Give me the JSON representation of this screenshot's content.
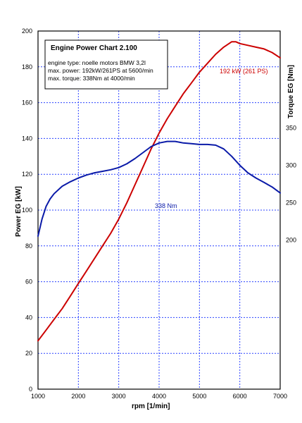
{
  "chart_data": {
    "type": "line",
    "info_box": {
      "title": "Engine Power Chart 2.100",
      "lines": [
        "engine type:  noelle motors BMW 3,2l",
        "max. power:  192kW/261PS at 5600/min",
        "max. torque:  338Nm at 4000/min"
      ]
    },
    "xlabel": "rpm   [1/min]",
    "ylabel_left": "Power  EG  [kW]",
    "ylabel_right": "Torque  EG  [Nm]",
    "xlim": [
      1000,
      7000
    ],
    "ylim_left": [
      0,
      200
    ],
    "ylim_right": [
      0,
      480
    ],
    "x_ticks": [
      "1000",
      "2000",
      "3000",
      "4000",
      "5000",
      "6000",
      "7000"
    ],
    "y_ticks_left": [
      "0",
      "20",
      "40",
      "60",
      "80",
      "100",
      "120",
      "140",
      "160",
      "180",
      "200"
    ],
    "y_ticks_right": [
      "200",
      "250",
      "300",
      "350"
    ],
    "y_tick_values_right": [
      200,
      250,
      300,
      350
    ],
    "grid": true,
    "series": [
      {
        "axis": "left",
        "color": "#cc0000",
        "x": [
          1000,
          1200,
          1400,
          1600,
          1800,
          2000,
          2200,
          2400,
          2600,
          2800,
          3000,
          3200,
          3400,
          3600,
          3800,
          4000,
          4200,
          4400,
          4600,
          4800,
          5000,
          5200,
          5400,
          5600,
          5800,
          5900,
          6000,
          6200,
          6400,
          6600,
          6800,
          7000
        ],
        "values": [
          27,
          33,
          39,
          45,
          52,
          59,
          66,
          73,
          80,
          87,
          95,
          104,
          114,
          124,
          134,
          143,
          151,
          158,
          165,
          171,
          177,
          182,
          187,
          191,
          194,
          194,
          193,
          192,
          191,
          190,
          188,
          185
        ]
      },
      {
        "axis": "right",
        "color": "#0a1aa8",
        "x": [
          1000,
          1100,
          1200,
          1300,
          1400,
          1600,
          1800,
          2000,
          2200,
          2400,
          2600,
          2800,
          3000,
          3200,
          3400,
          3600,
          3800,
          4000,
          4200,
          4400,
          4600,
          4800,
          5000,
          5200,
          5400,
          5600,
          5800,
          6000,
          6200,
          6400,
          6600,
          6800,
          7000
        ],
        "values": [
          205,
          228,
          245,
          255,
          262,
          272,
          278,
          283,
          287,
          290,
          292,
          294,
          297,
          302,
          309,
          317,
          325,
          330,
          332,
          332,
          330,
          329,
          328,
          328,
          327,
          322,
          312,
          300,
          290,
          283,
          277,
          271,
          263
        ]
      }
    ],
    "annotations": [
      {
        "text": "192 kW (261 PS)",
        "series": 0,
        "color": "#cc0000"
      },
      {
        "text": "338 Nm",
        "series": 1,
        "color": "#0a1aa8"
      }
    ]
  }
}
